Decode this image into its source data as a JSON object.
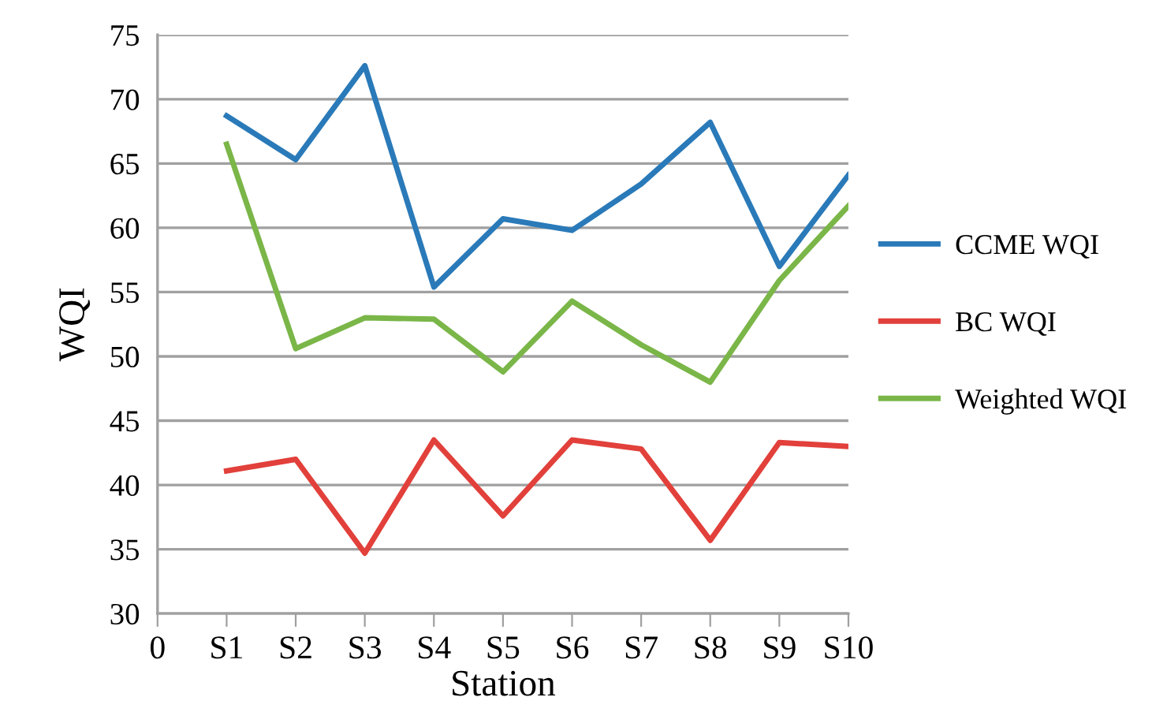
{
  "chart_data": {
    "type": "line",
    "xlabel": "Station",
    "ylabel": "WQI",
    "categories": [
      "0",
      "S1",
      "S2",
      "S3",
      "S4",
      "S5",
      "S6",
      "S7",
      "S8",
      "S9",
      "S10"
    ],
    "series": [
      {
        "name": "CCME WQI",
        "color": "#2a7ab9",
        "values": [
          null,
          68.7,
          65.3,
          72.6,
          55.4,
          60.7,
          59.8,
          63.4,
          68.2,
          57.0,
          64.1
        ]
      },
      {
        "name": "BC WQI",
        "color": "#e2403b",
        "values": [
          null,
          41.1,
          42.0,
          34.7,
          43.5,
          37.6,
          43.5,
          42.8,
          35.7,
          43.3,
          43.0
        ]
      },
      {
        "name": "Weighted WQI",
        "color": "#7ab648",
        "values": [
          null,
          66.5,
          50.6,
          53.0,
          52.9,
          48.8,
          54.3,
          50.9,
          48.0,
          55.9,
          61.7
        ]
      }
    ],
    "ylim": [
      30,
      75
    ],
    "yticks": [
      30,
      35,
      40,
      45,
      50,
      55,
      60,
      65,
      70,
      75
    ],
    "grid": "y",
    "legend": "right",
    "marker": "none",
    "line_style": "solid"
  }
}
